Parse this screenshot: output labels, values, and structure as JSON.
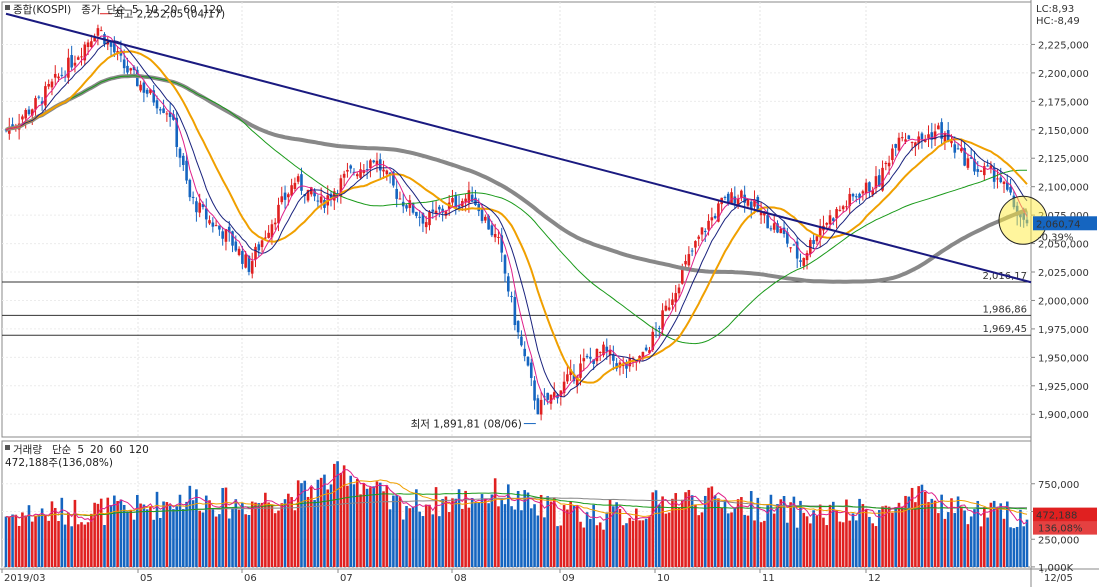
{
  "price_legend": {
    "name": "종합(KOSPI)",
    "items": [
      {
        "text": "종가",
        "color": "#e0208a"
      },
      {
        "text": "단순",
        "color": "#e0208a"
      },
      {
        "text": "5",
        "color": "#e0208a"
      },
      {
        "text": "10",
        "color": "#1a237e"
      },
      {
        "text": "20",
        "color": "#f0a000"
      },
      {
        "text": "60",
        "color": "#1a9a1a"
      },
      {
        "text": "120",
        "color": "#888888"
      }
    ]
  },
  "volume_legend": {
    "name": "거래량",
    "items": [
      {
        "text": "단순",
        "color": "#e0208a"
      },
      {
        "text": "5",
        "color": "#e0208a"
      },
      {
        "text": "20",
        "color": "#f0a000"
      },
      {
        "text": "60",
        "color": "#1a9a1a"
      },
      {
        "text": "120",
        "color": "#888888"
      }
    ],
    "current": "472,188주(136,08%)"
  },
  "lc_label": "LC:8,93",
  "hc_label": "HC:-8,49",
  "current_price_tag": "2,060,74",
  "current_change_tag": "-0,39%",
  "volume_tag": "472,188",
  "volume_pct_tag": "136,08%",
  "high_annotation": "최고 2,252,05 (04/17)",
  "low_annotation": "최저 1,891,81 (08/06)",
  "colors": {
    "up": "#e02020",
    "down": "#1565c0",
    "ma5": "#e0208a",
    "ma10": "#1a237e",
    "ma20": "#f0a000",
    "ma60": "#1a9a1a",
    "ma120": "#888888",
    "trend": "#1a1a80"
  },
  "chart_data": {
    "type": "candlestick",
    "x_labels": [
      "2019/03",
      "05",
      "06",
      "07",
      "08",
      "09",
      "10",
      "11",
      "12",
      "12/05"
    ],
    "price_axis": {
      "ticks": [
        "2,225,000",
        "2,200,000",
        "2,175,000",
        "2,150,000",
        "2,125,000",
        "2,100,000",
        "2,075,000",
        "2,050,000",
        "2,025,000",
        "2,000,000",
        "1,975,000",
        "1,950,000",
        "1,925,000",
        "1,900,000"
      ],
      "ylim": [
        1880,
        2250
      ]
    },
    "volume_axis": {
      "ticks": [
        "1,000K",
        "750,000",
        "500,000",
        "250,000"
      ],
      "ylim": [
        0,
        1000
      ]
    },
    "horizontal_levels": [
      {
        "value": 2016.17,
        "label": "2,016,17"
      },
      {
        "value": 1986.86,
        "label": "1,986,86"
      },
      {
        "value": 1969.45,
        "label": "1,969,45"
      }
    ],
    "trendline": {
      "start": [
        "2019/03",
        2252
      ],
      "end": [
        "12/05",
        2016
      ]
    },
    "price_waypoints": [
      [
        0,
        2150
      ],
      [
        10,
        2175
      ],
      [
        20,
        2210
      ],
      [
        28,
        2240
      ],
      [
        36,
        2205
      ],
      [
        44,
        2180
      ],
      [
        50,
        2165
      ],
      [
        56,
        2090
      ],
      [
        62,
        2070
      ],
      [
        68,
        2055
      ],
      [
        74,
        2030
      ],
      [
        80,
        2065
      ],
      [
        88,
        2105
      ],
      [
        96,
        2085
      ],
      [
        104,
        2110
      ],
      [
        112,
        2125
      ],
      [
        120,
        2090
      ],
      [
        128,
        2070
      ],
      [
        136,
        2085
      ],
      [
        142,
        2092
      ],
      [
        150,
        2050
      ],
      [
        156,
        1970
      ],
      [
        162,
        1905
      ],
      [
        168,
        1920
      ],
      [
        176,
        1945
      ],
      [
        182,
        1955
      ],
      [
        188,
        1940
      ],
      [
        194,
        1950
      ],
      [
        200,
        1985
      ],
      [
        206,
        2025
      ],
      [
        212,
        2060
      ],
      [
        218,
        2085
      ],
      [
        224,
        2095
      ],
      [
        230,
        2075
      ],
      [
        236,
        2060
      ],
      [
        242,
        2035
      ],
      [
        248,
        2065
      ],
      [
        254,
        2080
      ],
      [
        260,
        2095
      ],
      [
        266,
        2105
      ],
      [
        272,
        2148
      ],
      [
        278,
        2140
      ],
      [
        284,
        2150
      ],
      [
        290,
        2130
      ],
      [
        296,
        2115
      ],
      [
        302,
        2110
      ],
      [
        308,
        2078
      ],
      [
        311,
        2062
      ]
    ],
    "volume_waypoints": [
      [
        0,
        470
      ],
      [
        20,
        500
      ],
      [
        40,
        520
      ],
      [
        56,
        640
      ],
      [
        70,
        560
      ],
      [
        90,
        660
      ],
      [
        104,
        860
      ],
      [
        118,
        560
      ],
      [
        136,
        600
      ],
      [
        150,
        670
      ],
      [
        160,
        540
      ],
      [
        176,
        470
      ],
      [
        190,
        480
      ],
      [
        204,
        620
      ],
      [
        224,
        570
      ],
      [
        244,
        480
      ],
      [
        256,
        470
      ],
      [
        270,
        520
      ],
      [
        280,
        620
      ],
      [
        290,
        520
      ],
      [
        300,
        470
      ],
      [
        311,
        472
      ]
    ]
  }
}
